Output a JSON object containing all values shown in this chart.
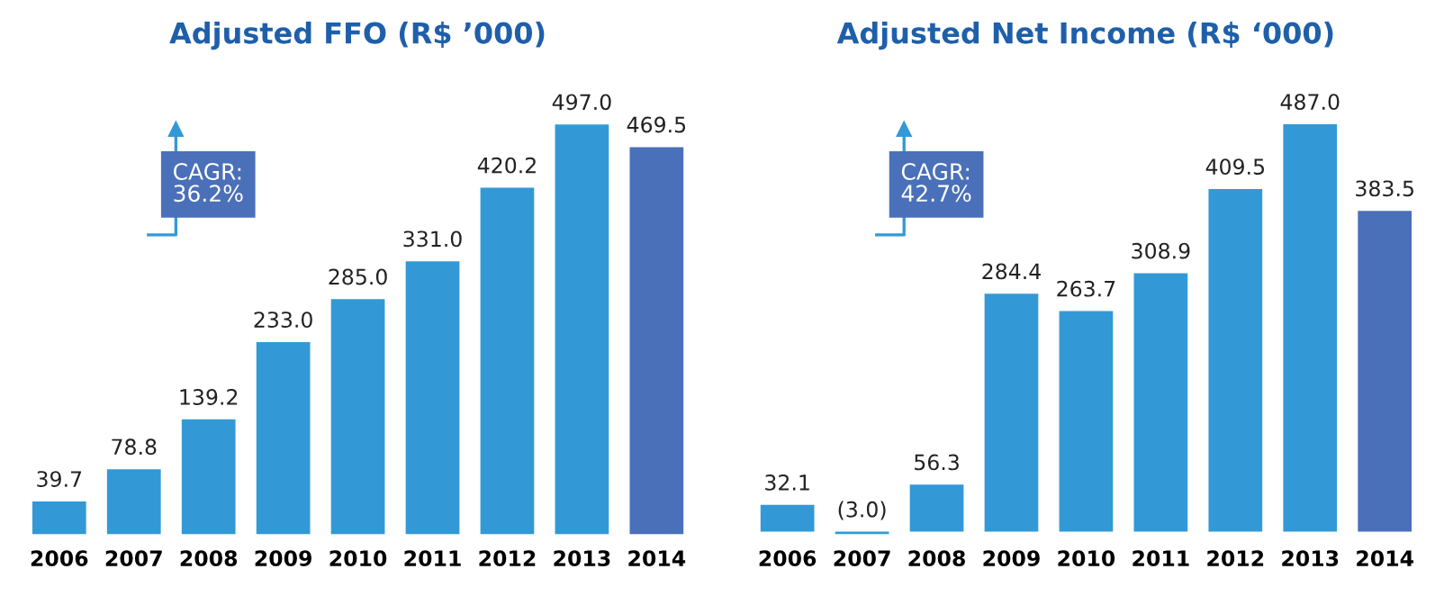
{
  "chart_data": [
    {
      "type": "bar",
      "title": "Adjusted FFO (R$ ’000)",
      "categories": [
        "2006",
        "2007",
        "2008",
        "2009",
        "2010",
        "2011",
        "2012",
        "2013",
        "2014"
      ],
      "values": [
        39.7,
        78.8,
        139.2,
        233.0,
        285.0,
        331.0,
        420.2,
        497.0,
        469.5
      ],
      "colors": [
        "#3399d6",
        "#3399d6",
        "#3399d6",
        "#3399d6",
        "#3399d6",
        "#3399d6",
        "#3399d6",
        "#3399d6",
        "#4a70b9"
      ],
      "value_labels": [
        "39.7",
        "78.8",
        "139.2",
        "233.0",
        "285.0",
        "331.0",
        "420.2",
        "497.0",
        "469.5"
      ],
      "annotations": [
        "CAGR:\n36.2%"
      ]
    },
    {
      "type": "bar",
      "title": "Adjusted Net Income (R$ ‘000)",
      "categories": [
        "2006",
        "2007",
        "2008",
        "2009",
        "2010",
        "2011",
        "2012",
        "2013",
        "2014"
      ],
      "values": [
        32.1,
        -3.0,
        56.3,
        284.4,
        263.7,
        308.9,
        409.5,
        487.0,
        383.5
      ],
      "colors": [
        "#3399d6",
        "#3399d6",
        "#3399d6",
        "#3399d6",
        "#3399d6",
        "#3399d6",
        "#3399d6",
        "#3399d6",
        "#4a70b9"
      ],
      "value_labels": [
        "32.1",
        "(3.0)",
        "56.3",
        "284.4",
        "263.7",
        "308.9",
        "409.5",
        "487.0",
        "383.5"
      ],
      "annotations": [
        "CAGR:\n42.7%"
      ]
    }
  ]
}
